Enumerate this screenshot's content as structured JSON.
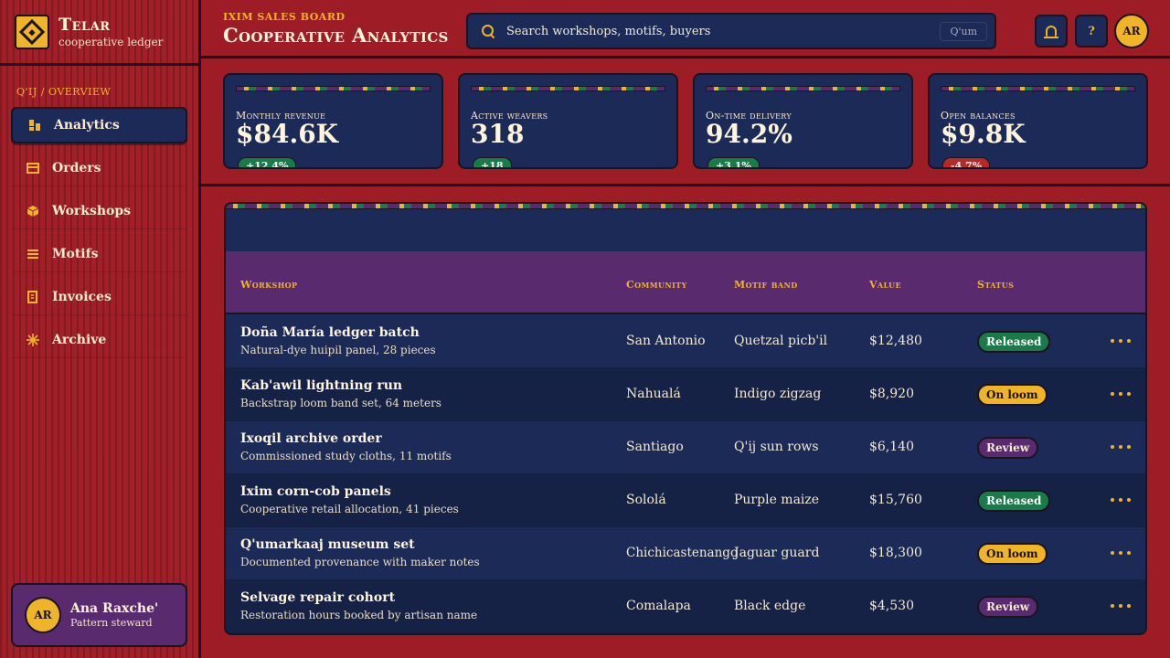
{
  "app": {
    "title": "Telar",
    "subtitle": "cooperative ledger"
  },
  "sidebar": {
    "breadcrumb": "Q'IJ / OVERVIEW",
    "items": [
      {
        "label": "Analytics",
        "icon": "bar-chart-icon",
        "active": true
      },
      {
        "label": "Orders",
        "icon": "tray-icon",
        "active": false
      },
      {
        "label": "Workshops",
        "icon": "cube-icon",
        "active": false
      },
      {
        "label": "Motifs",
        "icon": "lines-icon",
        "active": false
      },
      {
        "label": "Invoices",
        "icon": "receipt-icon",
        "active": false
      },
      {
        "label": "Archive",
        "icon": "sun-icon",
        "active": false
      }
    ],
    "user": {
      "initials": "AR",
      "name": "Ana Raxche'",
      "role": "Pattern steward"
    }
  },
  "header": {
    "eyebrow": "IXIM SALES BOARD",
    "title": "Cooperative Analytics",
    "search_placeholder": "Search workshops, motifs, buyers",
    "search_shortcut": "Q'um",
    "help_label": "?",
    "avatar_initials": "AR"
  },
  "kpis": [
    {
      "label": "Monthly revenue",
      "value": "$84.6K",
      "delta": "+12.4%",
      "trend": "up"
    },
    {
      "label": "Active weavers",
      "value": "318",
      "delta": "+18",
      "trend": "up"
    },
    {
      "label": "On-time delivery",
      "value": "94.2%",
      "delta": "+3.1%",
      "trend": "up"
    },
    {
      "label": "Open balances",
      "value": "$9.8K",
      "delta": "-4.7%",
      "trend": "down"
    }
  ],
  "table": {
    "columns": [
      "Workshop",
      "Community",
      "Motif band",
      "Value",
      "Status"
    ],
    "rows": [
      {
        "title": "Doña María ledger batch",
        "sub": "Natural-dye huipil panel, 28 pieces",
        "community": "San Antonio",
        "motif": "Quetzal picb'il",
        "value": "$12,480",
        "status": "Released"
      },
      {
        "title": "Kab'awil lightning run",
        "sub": "Backstrap loom band set, 64 meters",
        "community": "Nahualá",
        "motif": "Indigo zigzag",
        "value": "$8,920",
        "status": "On loom"
      },
      {
        "title": "Ixoqil archive order",
        "sub": "Commissioned study cloths, 11 motifs",
        "community": "Santiago",
        "motif": "Q'ij sun rows",
        "value": "$6,140",
        "status": "Review"
      },
      {
        "title": "Ixim corn-cob panels",
        "sub": "Cooperative retail allocation, 41 pieces",
        "community": "Sololá",
        "motif": "Purple maize",
        "value": "$15,760",
        "status": "Released"
      },
      {
        "title": "Q'umarkaaj museum set",
        "sub": "Documented provenance with maker notes",
        "community": "Chichicastenango",
        "motif": "Jaguar guard",
        "value": "$18,300",
        "status": "On loom"
      },
      {
        "title": "Selvage repair cohort",
        "sub": "Restoration hours booked by artisan name",
        "community": "Comalapa",
        "motif": "Black edge",
        "value": "$4,530",
        "status": "Review"
      }
    ]
  },
  "colors": {
    "background": "#9e1c26",
    "navy": "#1c2a57",
    "gold": "#f0b429",
    "purple": "#5a2a6e",
    "green": "#1a7a4a"
  }
}
